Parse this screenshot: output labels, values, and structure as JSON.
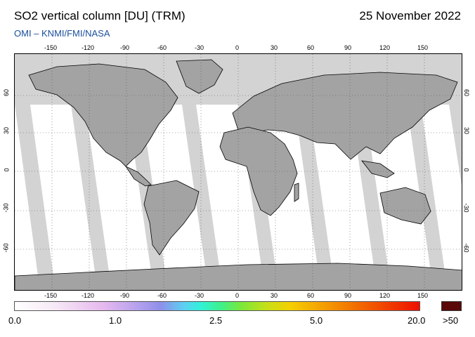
{
  "header": {
    "title": "SO2 vertical column [DU] (TRM)",
    "date": "25 November 2022",
    "source": "OMI  –  KNMI/FMI/NASA"
  },
  "map": {
    "lon_ticks": [
      "-150",
      "-120",
      "-90",
      "-60",
      "-30",
      "0",
      "30",
      "60",
      "90",
      "120",
      "150"
    ],
    "lat_ticks": [
      "60",
      "30",
      "0",
      "-30",
      "-60"
    ],
    "land_color": "#a3a3a3",
    "missing_swath_color": "#d3d3d3",
    "no_data_arctic_color": "#d3d3d3",
    "ocean_color": "#ffffff"
  },
  "colorbar": {
    "labels": [
      "0.0",
      "1.0",
      "2.5",
      "5.0",
      "20.0"
    ],
    "over_label": ">50",
    "colors": [
      "#ffffff",
      "#e6b8ee",
      "#8f8fea",
      "#32f2d8",
      "#7ce83a",
      "#f4d000",
      "#f26400",
      "#ee1000",
      "#5a0808"
    ]
  }
}
